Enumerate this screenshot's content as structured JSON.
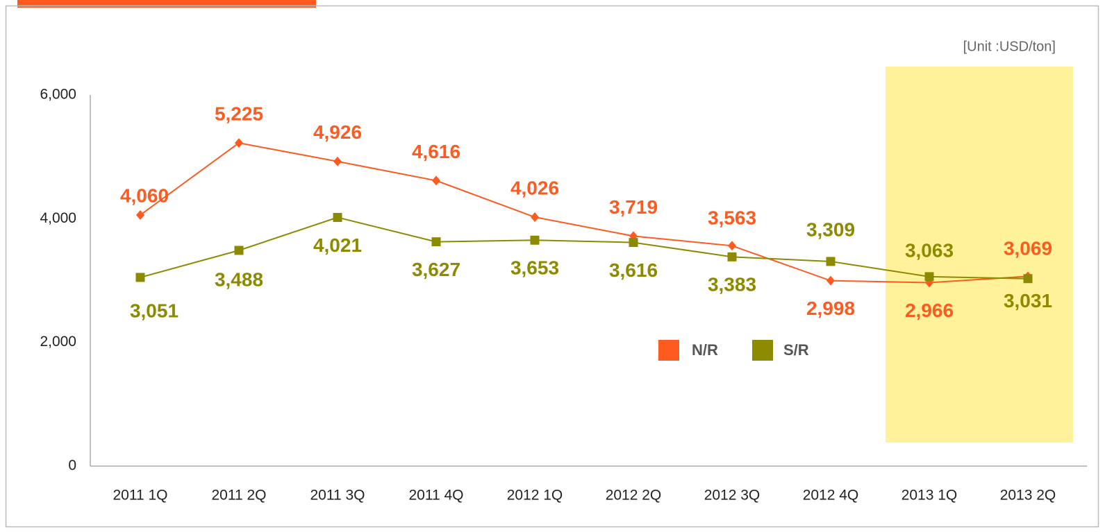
{
  "chart_data": {
    "type": "line",
    "unit": "[Unit :USD/ton]",
    "categories": [
      "2011 1Q",
      "2011 2Q",
      "2011 3Q",
      "2011 4Q",
      "2012 1Q",
      "2012 2Q",
      "2012 3Q",
      "2012 4Q",
      "2013 1Q",
      "2013 2Q"
    ],
    "series": [
      {
        "name": "N/R",
        "color": "#ff5a1f",
        "marker": "diamond",
        "values": [
          4060,
          5225,
          4926,
          4616,
          4026,
          3719,
          3563,
          2998,
          2966,
          3069
        ],
        "value_labels": [
          "4,060",
          "5,225",
          "4,926",
          "4,616",
          "4,026",
          "3,719",
          "3,563",
          "2,998",
          "2,966",
          "3,069"
        ]
      },
      {
        "name": "S/R",
        "color": "#8c8a00",
        "marker": "square",
        "values": [
          3051,
          3488,
          4021,
          3627,
          3653,
          3616,
          3383,
          3309,
          3063,
          3031
        ],
        "value_labels": [
          "3,051",
          "3,488",
          "4,021",
          "3,627",
          "3,653",
          "3,616",
          "3,383",
          "3,309",
          "3,063",
          "3,031"
        ]
      }
    ],
    "ylim": [
      0,
      6000
    ],
    "yticks": [
      0,
      {
        "value": 2000,
        "label": "2,000"
      },
      {
        "value": 4000,
        "label": "4,000"
      },
      {
        "value": 6000,
        "label": "6,000"
      }
    ],
    "grid": false,
    "legend": "center"
  }
}
